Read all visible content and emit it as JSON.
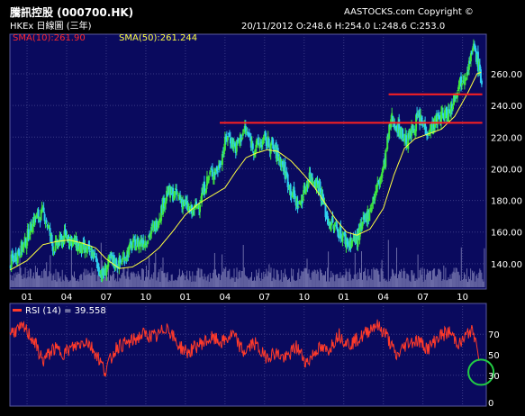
{
  "header": {
    "title": "騰訊控股 (000700.HK)",
    "copyright": "AASTOCKS.com Copyright ©",
    "exchange": "HKEx",
    "chart_kind": "日線圖 (三年)",
    "date": "20/11/2012",
    "open": "O:248.6",
    "high": "H:254.0",
    "low": "L:248.6",
    "close": "C:253.0"
  },
  "colors": {
    "panel_bg": "#0a0a5e",
    "grid": "#3a3a86",
    "candle_up": "#3ee63e",
    "candle_down": "#2fd0f0",
    "price_line": "#ffff80",
    "sma10": "#ff2a2a",
    "sma50": "#ffff40",
    "volume": "#6a6aa6",
    "resistance": "#ff2020",
    "rsi": "#ff3a2a",
    "highlight_circle": "#22cc44",
    "axis_text": "#ffffff"
  },
  "chart_data": [
    {
      "type": "line",
      "title": "騰訊控股 (000700.HK) 日線圖 (三年)",
      "legend": [
        "SMA(10):261.90",
        "SMA(50):261.244"
      ],
      "ytick_labels": [
        "140.00",
        "160.00",
        "180.00",
        "200.00",
        "220.00",
        "240.00",
        "260.00"
      ],
      "yticks": [
        140,
        160,
        180,
        200,
        220,
        240,
        260
      ],
      "ylim": [
        124,
        285
      ],
      "xtick_labels": [
        "01",
        "04",
        "07",
        "10",
        "01",
        "04",
        "07",
        "10",
        "01",
        "04",
        "07",
        "10"
      ],
      "xticks_months": [
        1,
        4,
        7,
        10,
        13,
        16,
        19,
        22,
        25,
        28,
        31,
        34
      ],
      "xlim_months": [
        -0.3,
        35.8
      ],
      "price_keyframes": {
        "month": [
          -0.3,
          0.2,
          0.8,
          1.5,
          2.3,
          3.0,
          4.0,
          5.0,
          6.0,
          6.7,
          7.3,
          8.0,
          9.0,
          10.0,
          10.8,
          11.6,
          12.4,
          13.5,
          14.0,
          14.8,
          15.5,
          16.2,
          16.8,
          17.5,
          18.2,
          19.0,
          19.6,
          20.3,
          21.0,
          21.6,
          22.4,
          23.1,
          23.8,
          24.6,
          25.3,
          26.0,
          27.0,
          28.0,
          28.6,
          29.1,
          29.8,
          30.6,
          31.4,
          32.2,
          33.0,
          33.6,
          34.3,
          34.9,
          35.5
        ],
        "value": [
          140,
          146,
          152,
          168,
          172,
          150,
          158,
          150,
          146,
          132,
          142,
          140,
          152,
          155,
          165,
          185,
          183,
          172,
          178,
          196,
          200,
          222,
          213,
          225,
          213,
          218,
          214,
          204,
          186,
          176,
          196,
          190,
          167,
          161,
          153,
          156,
          175,
          200,
          232,
          226,
          217,
          232,
          224,
          232,
          236,
          252,
          262,
          277,
          253
        ]
      },
      "sma50_keyframes": {
        "month": [
          -0.3,
          1.0,
          2.2,
          3.2,
          4.2,
          5.2,
          6.2,
          7.0,
          8.0,
          9.0,
          10.0,
          11.0,
          12.0,
          13.0,
          14.0,
          15.0,
          16.0,
          16.8,
          17.6,
          18.4,
          19.2,
          20.0,
          21.0,
          22.0,
          22.8,
          23.6,
          24.4,
          25.2,
          26.0,
          27.0,
          28.0,
          28.8,
          29.6,
          30.4,
          31.4,
          32.4,
          33.4,
          34.4,
          35.1,
          35.5
        ],
        "value": [
          136,
          142,
          152,
          154,
          155,
          153,
          150,
          143,
          137,
          138,
          143,
          150,
          160,
          171,
          178,
          183,
          188,
          198,
          207,
          210,
          212,
          211,
          205,
          196,
          188,
          178,
          168,
          160,
          158,
          162,
          175,
          196,
          213,
          219,
          222,
          225,
          233,
          248,
          260,
          261.2
        ]
      },
      "annotations": [
        {
          "type": "horizontal-line",
          "value": 229,
          "from_month": 15.6,
          "to_month": 35.5
        },
        {
          "type": "horizontal-line",
          "value": 247,
          "from_month": 28.4,
          "to_month": 35.5
        }
      ],
      "series": [
        {
          "name": "SMA(10)",
          "last": 261.9
        },
        {
          "name": "SMA(50)",
          "last": 261.244
        }
      ]
    },
    {
      "type": "line",
      "title": "RSI (14) = 39.558",
      "yticks": [
        0,
        30,
        50,
        70
      ],
      "ytick_labels": [
        "0",
        "30",
        "50",
        "70"
      ],
      "ylim": [
        0,
        100
      ],
      "last_value": 39.558,
      "rsi_keyframes": {
        "month": [
          -0.3,
          0.8,
          1.5,
          2.2,
          3.0,
          3.8,
          4.6,
          5.5,
          6.3,
          6.9,
          7.8,
          8.8,
          9.8,
          10.8,
          11.6,
          12.4,
          13.2,
          14.0,
          15.0,
          15.8,
          16.6,
          17.4,
          18.2,
          19.0,
          19.8,
          20.6,
          21.4,
          22.2,
          23.0,
          23.8,
          24.6,
          25.4,
          26.4,
          27.4,
          28.2,
          29.0,
          29.8,
          30.6,
          31.4,
          32.2,
          33.0,
          33.8,
          34.6,
          35.0,
          35.3
        ],
        "value": [
          72,
          76,
          64,
          44,
          56,
          52,
          58,
          64,
          50,
          34,
          58,
          62,
          70,
          67,
          78,
          60,
          52,
          60,
          66,
          62,
          70,
          52,
          62,
          48,
          52,
          46,
          58,
          42,
          56,
          54,
          70,
          60,
          68,
          80,
          70,
          48,
          62,
          64,
          56,
          68,
          72,
          60,
          74,
          66,
          39.558
        ]
      }
    }
  ]
}
